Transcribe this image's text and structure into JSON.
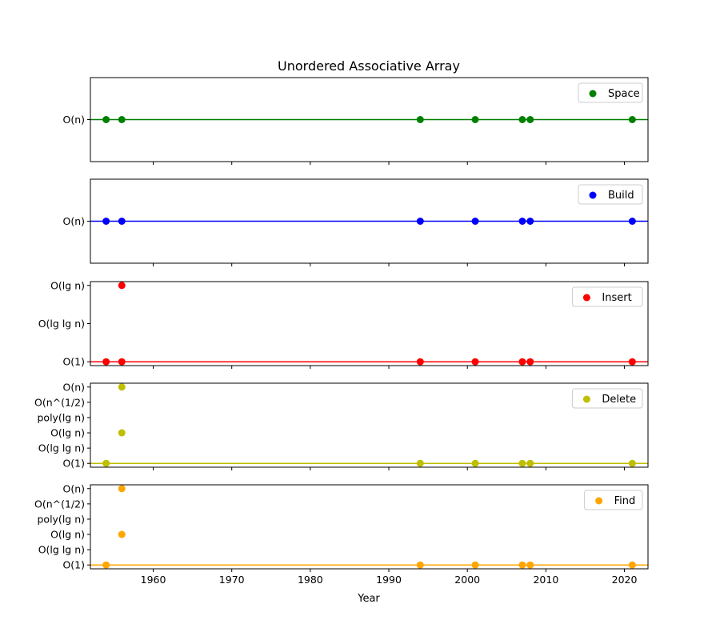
{
  "chart_data": {
    "type": "scatter",
    "title": "Unordered Associative Array",
    "xlabel": "Year",
    "xlim": [
      1952,
      2023
    ],
    "xticks": [
      1960,
      1970,
      1980,
      1990,
      2000,
      2010,
      2020
    ],
    "shared_x": true,
    "legend_placement": "top-right",
    "grid": false,
    "panels": [
      {
        "name": "Space",
        "color": "#008000",
        "yticklabels": [
          "O(n)"
        ],
        "ylim": [
          -1,
          1
        ],
        "baseline": 0,
        "points": [
          {
            "x": 1954,
            "y": 0
          },
          {
            "x": 1956,
            "y": 0
          },
          {
            "x": 1994,
            "y": 0
          },
          {
            "x": 2001,
            "y": 0
          },
          {
            "x": 2007,
            "y": 0
          },
          {
            "x": 2008,
            "y": 0
          },
          {
            "x": 2021,
            "y": 0
          }
        ]
      },
      {
        "name": "Build",
        "color": "#0000ff",
        "yticklabels": [
          "O(n)"
        ],
        "ylim": [
          -1,
          1
        ],
        "baseline": 0,
        "points": [
          {
            "x": 1954,
            "y": 0
          },
          {
            "x": 1956,
            "y": 0
          },
          {
            "x": 1994,
            "y": 0
          },
          {
            "x": 2001,
            "y": 0
          },
          {
            "x": 2007,
            "y": 0
          },
          {
            "x": 2008,
            "y": 0
          },
          {
            "x": 2021,
            "y": 0
          }
        ]
      },
      {
        "name": "Insert",
        "color": "#ff0000",
        "yticklabels": [
          "O(1)",
          "O(lg lg n)",
          "O(lg n)"
        ],
        "ylim": [
          -0.1,
          2.1
        ],
        "baseline": 0,
        "points": [
          {
            "x": 1954,
            "y": 0
          },
          {
            "x": 1956,
            "y": 0
          },
          {
            "x": 1956,
            "y": 2
          },
          {
            "x": 1994,
            "y": 0
          },
          {
            "x": 2001,
            "y": 0
          },
          {
            "x": 2007,
            "y": 0
          },
          {
            "x": 2008,
            "y": 0
          },
          {
            "x": 2021,
            "y": 0
          }
        ]
      },
      {
        "name": "Delete",
        "color": "#bfbf00",
        "yticklabels": [
          "O(1)",
          "O(lg lg n)",
          "O(lg n)",
          "poly(lg n)",
          "O(n^(1/2)",
          "O(n)"
        ],
        "ylim": [
          -0.25,
          5.25
        ],
        "baseline": 0,
        "points": [
          {
            "x": 1954,
            "y": 0
          },
          {
            "x": 1956,
            "y": 2
          },
          {
            "x": 1956,
            "y": 5
          },
          {
            "x": 1994,
            "y": 0
          },
          {
            "x": 2001,
            "y": 0
          },
          {
            "x": 2007,
            "y": 0
          },
          {
            "x": 2008,
            "y": 0
          },
          {
            "x": 2021,
            "y": 0
          }
        ]
      },
      {
        "name": "Find",
        "color": "#ffa500",
        "yticklabels": [
          "O(1)",
          "O(lg lg n)",
          "O(lg n)",
          "poly(lg n)",
          "O(n^(1/2)",
          "O(n)"
        ],
        "ylim": [
          -0.25,
          5.25
        ],
        "baseline": 0,
        "points": [
          {
            "x": 1954,
            "y": 0
          },
          {
            "x": 1956,
            "y": 2
          },
          {
            "x": 1956,
            "y": 5
          },
          {
            "x": 1994,
            "y": 0
          },
          {
            "x": 2001,
            "y": 0
          },
          {
            "x": 2007,
            "y": 0
          },
          {
            "x": 2008,
            "y": 0
          },
          {
            "x": 2021,
            "y": 0
          }
        ]
      }
    ]
  }
}
